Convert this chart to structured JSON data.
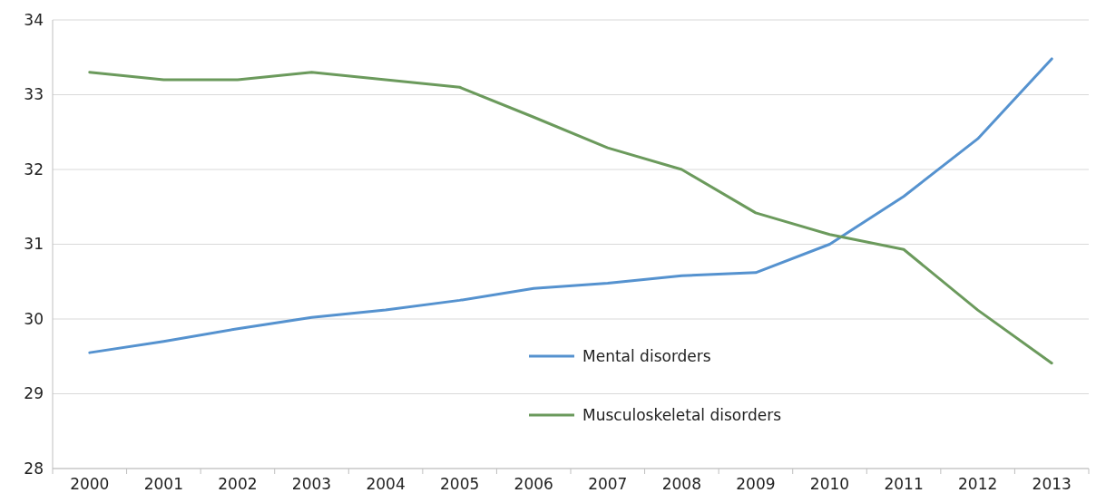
{
  "chart_data": {
    "type": "line",
    "categories": [
      "2000",
      "2001",
      "2002",
      "2003",
      "2004",
      "2005",
      "2006",
      "2007",
      "2008",
      "2009",
      "2010",
      "2011",
      "2012",
      "2013"
    ],
    "series": [
      {
        "name": "Mental disorders",
        "color": "#5592cf",
        "values": [
          29.55,
          29.7,
          29.87,
          30.02,
          30.12,
          30.25,
          30.41,
          30.48,
          30.58,
          30.62,
          31.0,
          31.64,
          32.41,
          33.48
        ]
      },
      {
        "name": "Musculoskeletal disorders",
        "color": "#6b9a5c",
        "values": [
          33.3,
          33.2,
          33.2,
          33.3,
          33.2,
          33.1,
          32.7,
          32.29,
          32.0,
          31.42,
          31.13,
          30.93,
          30.12,
          29.41
        ]
      }
    ],
    "ylim": [
      28,
      34
    ],
    "yticks": [
      28,
      29,
      30,
      31,
      32,
      33,
      34
    ],
    "grid": "y",
    "legend": "bottom",
    "marker": "none",
    "line_style": "solid"
  }
}
